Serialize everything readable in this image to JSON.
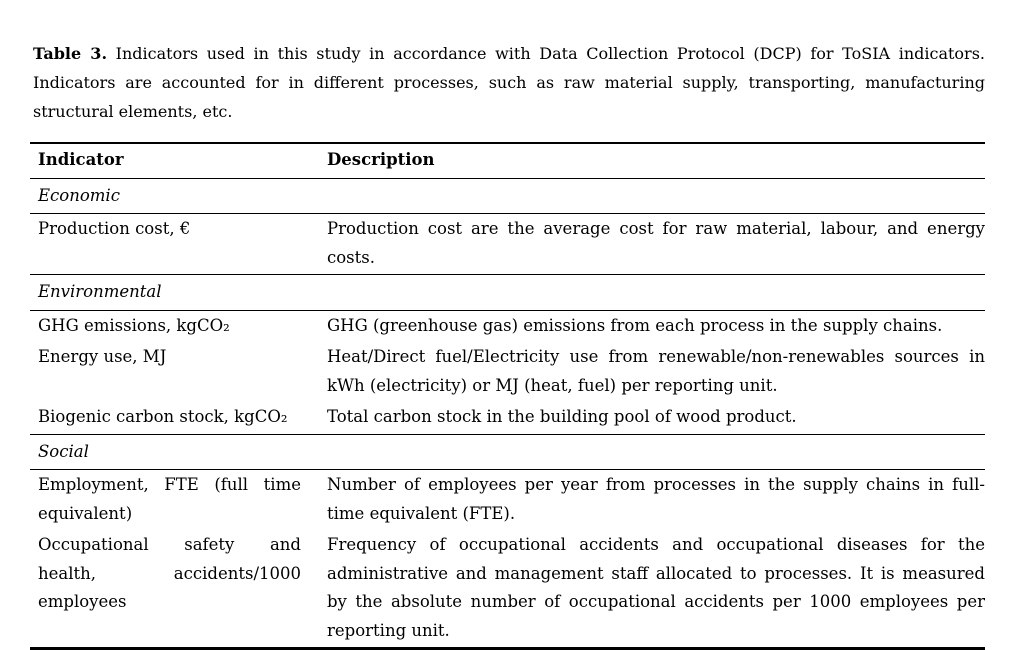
{
  "theme": {
    "background": "#ffffff",
    "text_color": "#000000",
    "rule_color": "#000000"
  },
  "caption": {
    "label": "Table 3.",
    "text": "Indicators used in this study in accordance with Data Collection Protocol (DCP) for ToSIA indicators. Indicators are accounted for in different processes, such as raw material supply, transporting, manufacturing structural elements, etc."
  },
  "table": {
    "columns": [
      "Indicator",
      "Description"
    ],
    "sections": [
      {
        "name": "Economic",
        "rows": [
          {
            "indicator": "Production cost, €",
            "description": "Production cost are the average cost for raw material, labour, and energy costs."
          }
        ]
      },
      {
        "name": "Environmental",
        "rows": [
          {
            "indicator": "GHG emissions, kgCO₂",
            "description": "GHG (greenhouse gas) emissions from each process in the supply chains."
          },
          {
            "indicator": "Energy use, MJ",
            "description": "Heat/Direct fuel/Electricity use from renewable/non-renewables sources in kWh (electricity) or MJ (heat, fuel) per reporting unit."
          },
          {
            "indicator": "Biogenic carbon stock, kgCO₂",
            "description": "Total carbon stock in the building pool of wood product."
          }
        ]
      },
      {
        "name": "Social",
        "rows": [
          {
            "indicator": "Employment, FTE (full time equivalent)",
            "description": "Number of employees per year from processes in the supply chains in full-time equivalent (FTE)."
          },
          {
            "indicator": "Occupational safety and health, accidents/1000 employees",
            "description": "Frequency of occupational accidents and occupational diseases for the administrative and management staff allocated to processes. It is measured by the absolute number of occupational accidents per 1000 employees per reporting unit."
          }
        ]
      }
    ]
  }
}
